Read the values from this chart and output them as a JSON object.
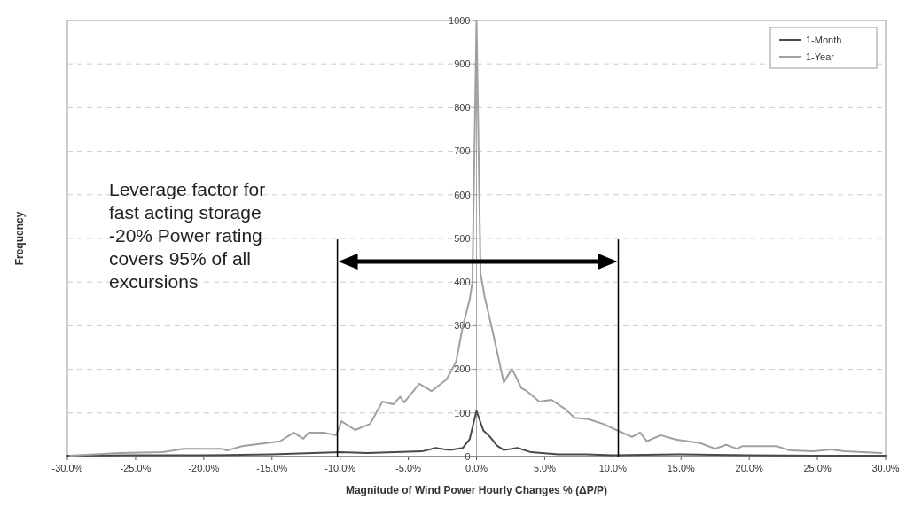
{
  "chart_data": {
    "type": "line",
    "xlabel": "Magnitude of Wind Power Hourly Changes % (ΔP/P)",
    "ylabel": "Frequency",
    "xlim": [
      -30,
      30
    ],
    "xticks": [
      {
        "value": -30,
        "label": "-30.0%"
      },
      {
        "value": -25,
        "label": "-25.0%"
      },
      {
        "value": -20,
        "label": "-20.0%"
      },
      {
        "value": -15,
        "label": "-15.0%"
      },
      {
        "value": -10,
        "label": "-10.0%"
      },
      {
        "value": -5,
        "label": "-5.0%"
      },
      {
        "value": 0,
        "label": "0.0%"
      },
      {
        "value": 5,
        "label": "5.0%"
      },
      {
        "value": 10,
        "label": "10.0%"
      },
      {
        "value": 15,
        "label": "15.0%"
      },
      {
        "value": 20,
        "label": "20.0%"
      },
      {
        "value": 25,
        "label": "25.0%"
      },
      {
        "value": 30,
        "label": "30.0%"
      }
    ],
    "ylim": [
      0,
      1000
    ],
    "yticks": [
      0,
      100,
      200,
      300,
      400,
      500,
      600,
      700,
      800,
      900,
      1000
    ],
    "grid": "y",
    "legend": "top right",
    "series": [
      {
        "name": "1-Month",
        "color": "#4a4a4a",
        "x": [
          -30,
          -25,
          -20,
          -15,
          -12,
          -10,
          -8,
          -6,
          -4,
          -3,
          -2,
          -1,
          -0.5,
          0,
          0.5,
          1,
          1.5,
          2,
          3,
          4,
          6,
          8,
          10,
          15,
          20,
          25,
          30
        ],
        "values": [
          2,
          3,
          3,
          5,
          8,
          10,
          8,
          10,
          12,
          20,
          15,
          20,
          40,
          105,
          60,
          45,
          25,
          15,
          20,
          10,
          5,
          5,
          3,
          5,
          3,
          2,
          2
        ]
      },
      {
        "name": "1-Year",
        "color": "#a0a0a0",
        "x": [
          -29.8,
          -26.2,
          -23,
          -21.5,
          -18.7,
          -18.3,
          -17.2,
          -14.4,
          -13.4,
          -12.7,
          -12.3,
          -11.2,
          -10.3,
          -9.9,
          -8.9,
          -7.8,
          -6.9,
          -6.1,
          -5.6,
          -5.3,
          -4.2,
          -3.3,
          -2.2,
          -1.5,
          -1,
          -0.5,
          -0.3,
          0,
          0.3,
          0.6,
          1.2,
          2,
          2.6,
          3.3,
          3.7,
          4.6,
          5.5,
          6.5,
          7.2,
          8.2,
          9.3,
          10.4,
          11.4,
          12,
          12.5,
          13.5,
          14.6,
          16.4,
          17.5,
          18.3,
          19.1,
          19.5,
          22,
          23,
          24.7,
          26,
          27,
          29.7
        ],
        "values": [
          2,
          8,
          10,
          18,
          18,
          14,
          24,
          35,
          55,
          41,
          55,
          55,
          49,
          81,
          61,
          75,
          126,
          120,
          137,
          124,
          167,
          150,
          177,
          217,
          299,
          360,
          400,
          1000,
          420,
          366,
          285,
          170,
          201,
          157,
          150,
          126,
          130,
          109,
          89,
          86,
          75,
          59,
          45,
          55,
          35,
          49,
          39,
          31,
          18,
          27,
          18,
          24,
          24,
          14,
          12,
          16,
          12,
          8
        ]
      }
    ],
    "ref_lines": [
      {
        "axis": "x",
        "value": -10.2,
        "color": "#000000"
      },
      {
        "axis": "x",
        "value": 10.4,
        "color": "#000000"
      }
    ],
    "annotations": [
      "Leverage factor for fast acting storage -20% Power rating covers 95% of all excursions"
    ]
  }
}
